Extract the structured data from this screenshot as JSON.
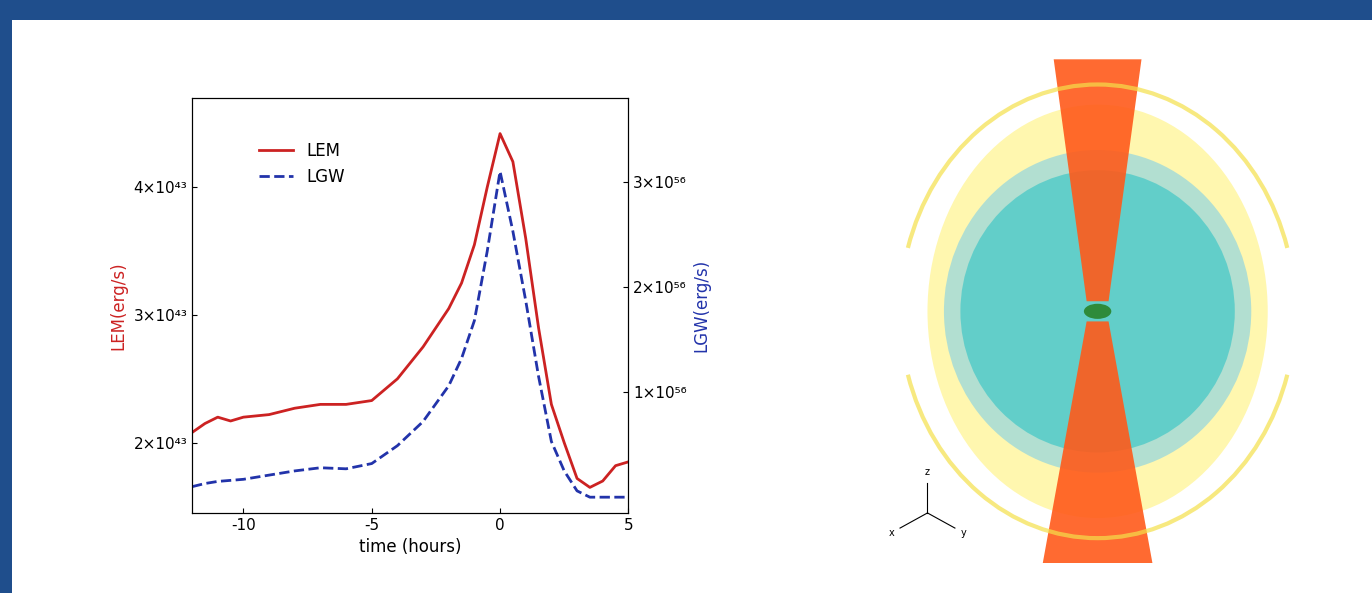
{
  "chart_data": {
    "type": "line",
    "x_label": "time (hours)",
    "xlim": [
      -12,
      5
    ],
    "xticks": [
      -10,
      -5,
      0,
      5
    ],
    "ylim": [
      1.45e+43,
      4.7e+43
    ],
    "yticks": [
      {
        "value": 2e+43,
        "label": "2×10⁴³"
      },
      {
        "value": 3e+43,
        "label": "3×10⁴³"
      },
      {
        "value": 4e+43,
        "label": "4×10⁴³"
      }
    ],
    "y_label": "LEM(erg/s)",
    "y2lim": [
      -1.5e+55,
      3.8e+56
    ],
    "y2ticks": [
      {
        "value": 1e+56,
        "label": "1×10⁵⁶"
      },
      {
        "value": 2e+56,
        "label": "2×10⁵⁶"
      },
      {
        "value": 3e+56,
        "label": "3×10⁵⁶"
      }
    ],
    "y2_label": "LGW(erg/s)",
    "legend": "upper left",
    "x": [
      -12,
      -11.5,
      -11,
      -10.5,
      -10,
      -9,
      -8,
      -7,
      -6,
      -5,
      -4,
      -3,
      -2,
      -1.5,
      -1,
      -0.5,
      0,
      0.5,
      1,
      1.5,
      2,
      2.5,
      3,
      3.5,
      4,
      4.5,
      5
    ],
    "series": [
      {
        "name": "LEM",
        "color": "#cc2222",
        "line_style": "solid",
        "values": [
          2.08e+43,
          2.15e+43,
          2.2e+43,
          2.17e+43,
          2.2e+43,
          2.22e+43,
          2.27e+43,
          2.3e+43,
          2.3e+43,
          2.33e+43,
          2.5e+43,
          2.75e+43,
          3.05e+43,
          3.25e+43,
          3.55e+43,
          4e+43,
          4.42e+43,
          4.2e+43,
          3.6e+43,
          2.9e+43,
          2.3e+43,
          2e+43,
          1.72e+43,
          1.65e+43,
          1.7e+43,
          1.82e+43,
          1.85e+43
        ]
      },
      {
        "name": "LGW",
        "color": "#2233aa",
        "line_style": "dashed",
        "axis": "y2",
        "values": [
          1e+55,
          1.3e+55,
          1.5e+55,
          1.6e+55,
          1.7e+55,
          2.1e+55,
          2.5e+55,
          2.8e+55,
          2.7e+55,
          3.2e+55,
          4.9e+55,
          7.2e+55,
          1.06e+56,
          1.32e+56,
          1.68e+56,
          2.34e+56,
          3.1e+56,
          2.53e+56,
          1.87e+56,
          1.15e+56,
          5.3e+55,
          2.5e+55,
          6e+54,
          0.0,
          0.0,
          0.0,
          0.0
        ]
      }
    ]
  },
  "image": {
    "axis_labels": [
      "z",
      "x",
      "y"
    ]
  }
}
